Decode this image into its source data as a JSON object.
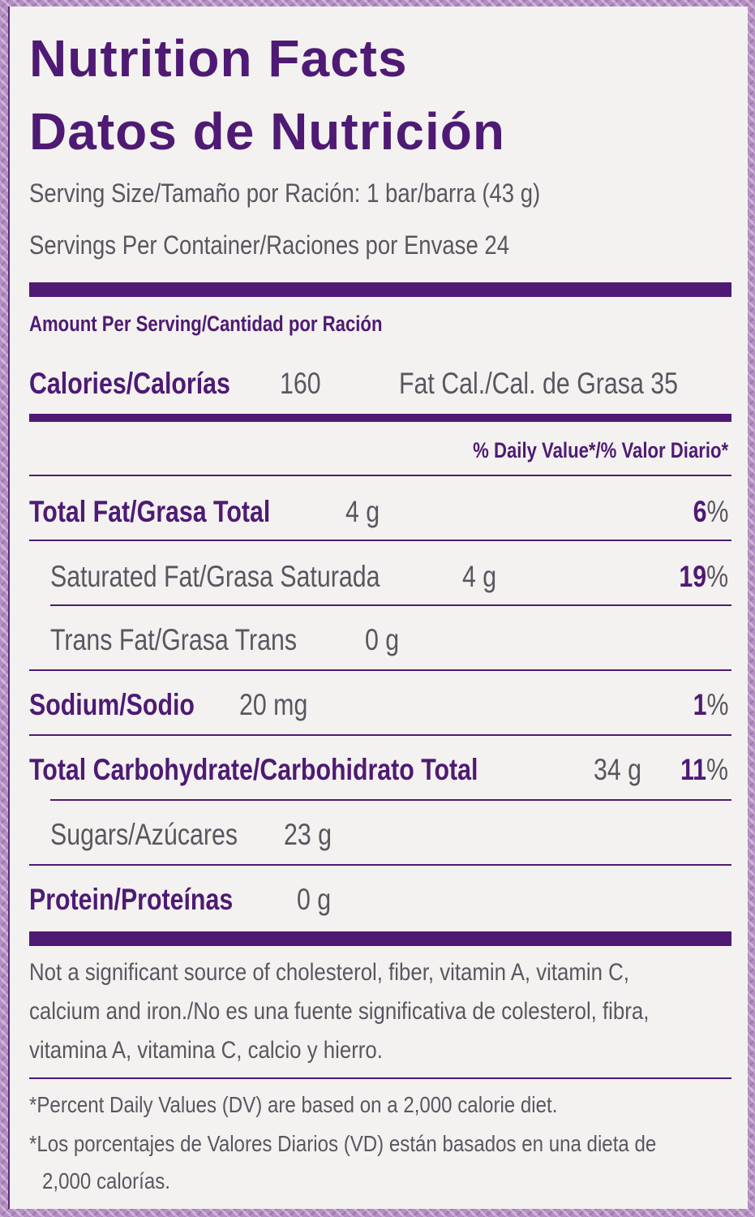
{
  "title_en": "Nutrition Facts",
  "title_es": "Datos de Nutrición",
  "serving_size": "Serving Size/Tamaño por Ración:  1 bar/barra (43 g)",
  "servings_per_container": "Servings Per Container/Raciones por Envase  24",
  "amount_header": "Amount Per Serving/Cantidad por Ración",
  "calories": {
    "label": "Calories/Calorías",
    "value": "160"
  },
  "fat_calories": "Fat Cal./Cal. de Grasa 35",
  "dv_header": "% Daily Value*/% Valor Diario*",
  "rows": [
    {
      "label": "Total Fat/Grasa Total",
      "amount": "4 g",
      "pct_num": "6",
      "pct_unit": "%"
    },
    {
      "label": "Saturated Fat/Grasa Saturada",
      "amount": "4 g",
      "pct_num": "19",
      "pct_unit": "%"
    },
    {
      "label": "Trans Fat/Grasa Trans",
      "amount": "0 g"
    },
    {
      "label": "Sodium/Sodio",
      "amount": "20 mg",
      "pct_num": "1",
      "pct_unit": "%"
    },
    {
      "label": "Total Carbohydrate/Carbohidrato Total",
      "amount": "34 g",
      "pct_num": "11",
      "pct_unit": "%"
    },
    {
      "label": "Sugars/Azúcares",
      "amount": "23 g"
    },
    {
      "label": "Protein/Proteínas",
      "amount": "0 g"
    }
  ],
  "not_significant": [
    "Not a significant source of cholesterol, fiber, vitamin A, vitamin C,",
    "calcium and iron./No es una fuente significativa de colesterol, fibra,",
    "vitamina A, vitamina C, calcio y hierro."
  ],
  "footnote_en": "*Percent Daily Values (DV) are based on a 2,000 calorie diet.",
  "footnote_es": [
    "*Los porcentajes de Valores Diarios (VD) están basados en una dieta de",
    "2,000 calorías."
  ],
  "colors": {
    "brand_purple": "#4e1a74",
    "text_gray": "#5a5660",
    "panel": "#f4f2f0"
  }
}
